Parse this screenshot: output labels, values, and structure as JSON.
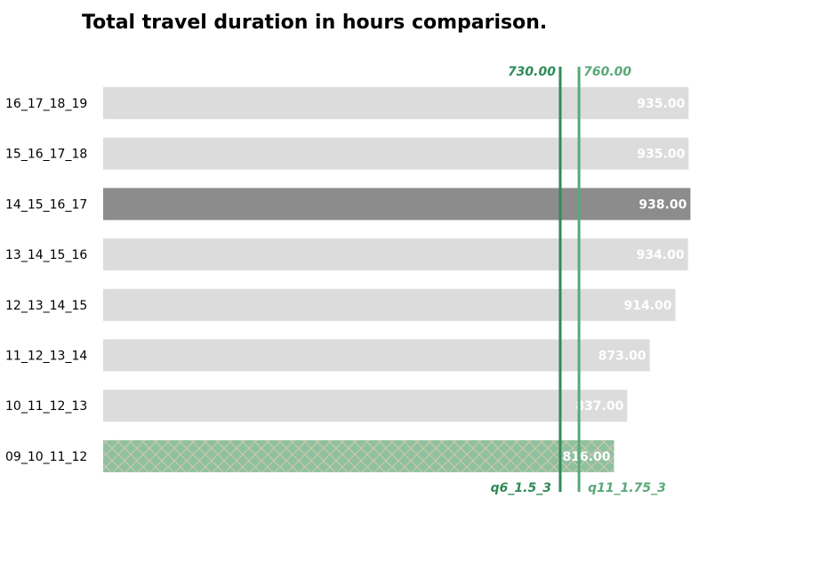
{
  "chart_data": {
    "type": "bar",
    "orientation": "horizontal",
    "title": "Total travel duration in hours comparison.",
    "xlabel": "",
    "ylabel": "",
    "xlim": [
      0,
      980
    ],
    "grid": false,
    "categories": [
      "16_17_18_19",
      "15_16_17_18",
      "14_15_16_17",
      "13_14_15_16",
      "12_13_14_15",
      "11_12_13_14",
      "10_11_12_13",
      "09_10_11_12"
    ],
    "values": [
      935,
      935,
      938,
      934,
      914,
      873,
      837,
      816
    ],
    "value_labels": [
      "935.00",
      "935.00",
      "938.00",
      "934.00",
      "914.00",
      "873.00",
      "837.00",
      "816.00"
    ],
    "highlight_index": 2,
    "reference_index": 7,
    "colors": {
      "default_bar": "#dcdcdc",
      "highlight_bar": "#8c8c8c",
      "reference_bar": "#8fc1a0",
      "hatch": "#e0c8b0",
      "line_primary": "#2e8b57",
      "line_secondary": "#5aa878"
    },
    "reference_lines": [
      {
        "value": 730,
        "value_label": "730.00",
        "name": "q6_1.5_3",
        "color": "#2e8b57"
      },
      {
        "value": 760,
        "value_label": "760.00",
        "name": "q11_1.75_3",
        "color": "#5aa878"
      }
    ]
  }
}
